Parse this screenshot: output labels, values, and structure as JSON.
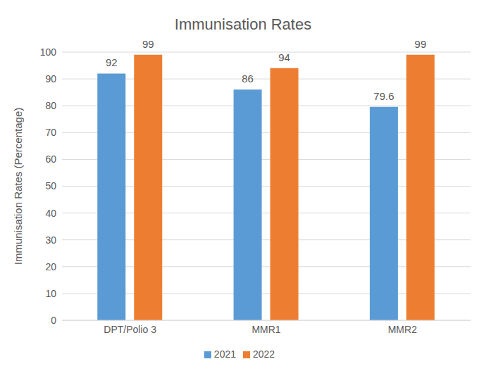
{
  "chart_data": {
    "type": "bar",
    "title": "Immunisation Rates",
    "y_label": "Immunisation Rates (Percentage)",
    "categories": [
      "DPT/Polio 3",
      "MMR1",
      "MMR2"
    ],
    "series": [
      {
        "name": "2021",
        "color": "#5b9bd5",
        "values": [
          92,
          86,
          79.6
        ]
      },
      {
        "name": "2022",
        "color": "#ed7d31",
        "values": [
          99,
          94,
          99
        ]
      }
    ],
    "ylim": [
      0,
      100
    ],
    "yticks": [
      0,
      10,
      20,
      30,
      40,
      50,
      60,
      70,
      80,
      90,
      100
    ],
    "grid": true,
    "legend": "bottom",
    "data_labels": true
  }
}
